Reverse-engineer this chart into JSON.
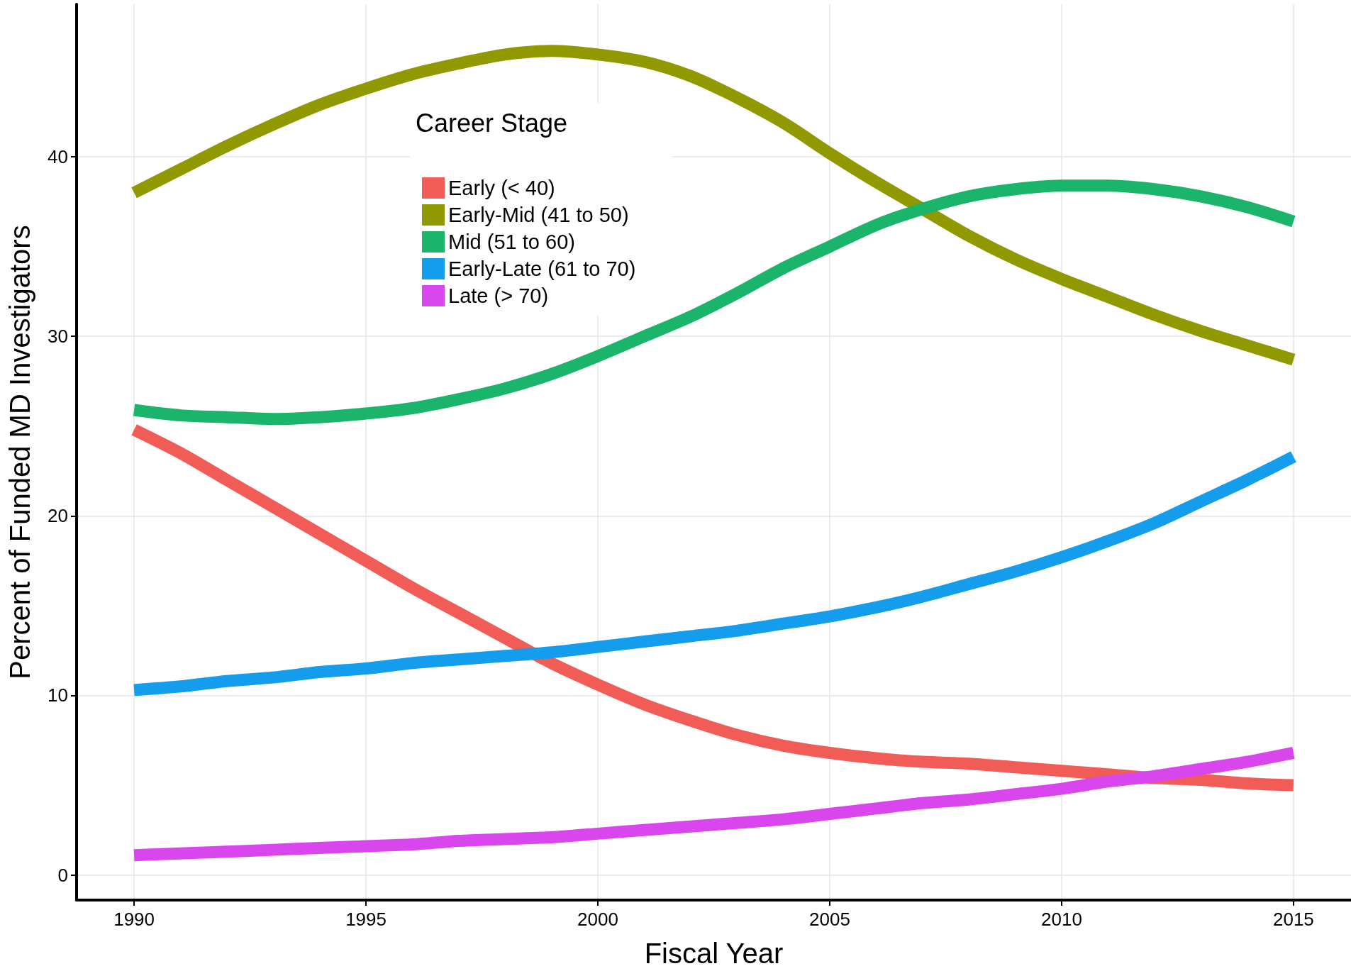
{
  "chart_data": {
    "type": "line",
    "xlabel": "Fiscal Year",
    "ylabel": "Percent of Funded MD Investigators",
    "legend_title": "Career Stage",
    "x": [
      1990,
      1991,
      1992,
      1993,
      1994,
      1995,
      1996,
      1997,
      1998,
      1999,
      2000,
      2001,
      2002,
      2003,
      2004,
      2005,
      2006,
      2007,
      2008,
      2009,
      2010,
      2011,
      2012,
      2013,
      2014,
      2015
    ],
    "series": [
      {
        "name": "Early (< 40)",
        "color": "#f25c57",
        "values": [
          24.8,
          23.5,
          22.0,
          20.5,
          19.0,
          17.5,
          16.0,
          14.6,
          13.2,
          11.8,
          10.6,
          9.5,
          8.6,
          7.8,
          7.2,
          6.8,
          6.5,
          6.3,
          6.2,
          6.0,
          5.8,
          5.6,
          5.4,
          5.3,
          5.1,
          5.0
        ]
      },
      {
        "name": "Early-Mid (41 to 50)",
        "color": "#909a00",
        "values": [
          38.0,
          39.3,
          40.6,
          41.8,
          42.9,
          43.8,
          44.6,
          45.2,
          45.7,
          45.9,
          45.7,
          45.3,
          44.5,
          43.3,
          41.9,
          40.2,
          38.6,
          37.1,
          35.6,
          34.3,
          33.2,
          32.2,
          31.2,
          30.3,
          29.5,
          28.7
        ]
      },
      {
        "name": "Mid (51 to 60)",
        "color": "#1ab46a",
        "values": [
          25.9,
          25.6,
          25.5,
          25.4,
          25.5,
          25.7,
          26.0,
          26.5,
          27.1,
          27.9,
          28.9,
          30.0,
          31.1,
          32.4,
          33.8,
          35.0,
          36.2,
          37.1,
          37.8,
          38.2,
          38.4,
          38.4,
          38.2,
          37.8,
          37.2,
          36.4
        ]
      },
      {
        "name": "Early-Late (61 to 70)",
        "color": "#159ded",
        "values": [
          10.3,
          10.5,
          10.8,
          11.0,
          11.3,
          11.5,
          11.8,
          12.0,
          12.2,
          12.4,
          12.7,
          13.0,
          13.3,
          13.6,
          14.0,
          14.4,
          14.9,
          15.5,
          16.2,
          16.9,
          17.7,
          18.6,
          19.6,
          20.8,
          22.0,
          23.3
        ]
      },
      {
        "name": "Late (> 70)",
        "color": "#d946ee",
        "values": [
          1.1,
          1.2,
          1.3,
          1.4,
          1.5,
          1.6,
          1.7,
          1.9,
          2.0,
          2.1,
          2.3,
          2.5,
          2.7,
          2.9,
          3.1,
          3.4,
          3.7,
          4.0,
          4.2,
          4.5,
          4.8,
          5.2,
          5.5,
          5.9,
          6.3,
          6.8
        ]
      }
    ],
    "xlim": [
      1988.76,
      2016.24
    ],
    "xticks": [
      1990,
      1995,
      2000,
      2005,
      2010,
      2015
    ],
    "ylim": [
      -1.4,
      48.5
    ],
    "yticks": [
      0,
      10,
      20,
      30,
      40
    ],
    "grid": true,
    "legend": "top",
    "marker": "none",
    "line_style": "solid"
  }
}
